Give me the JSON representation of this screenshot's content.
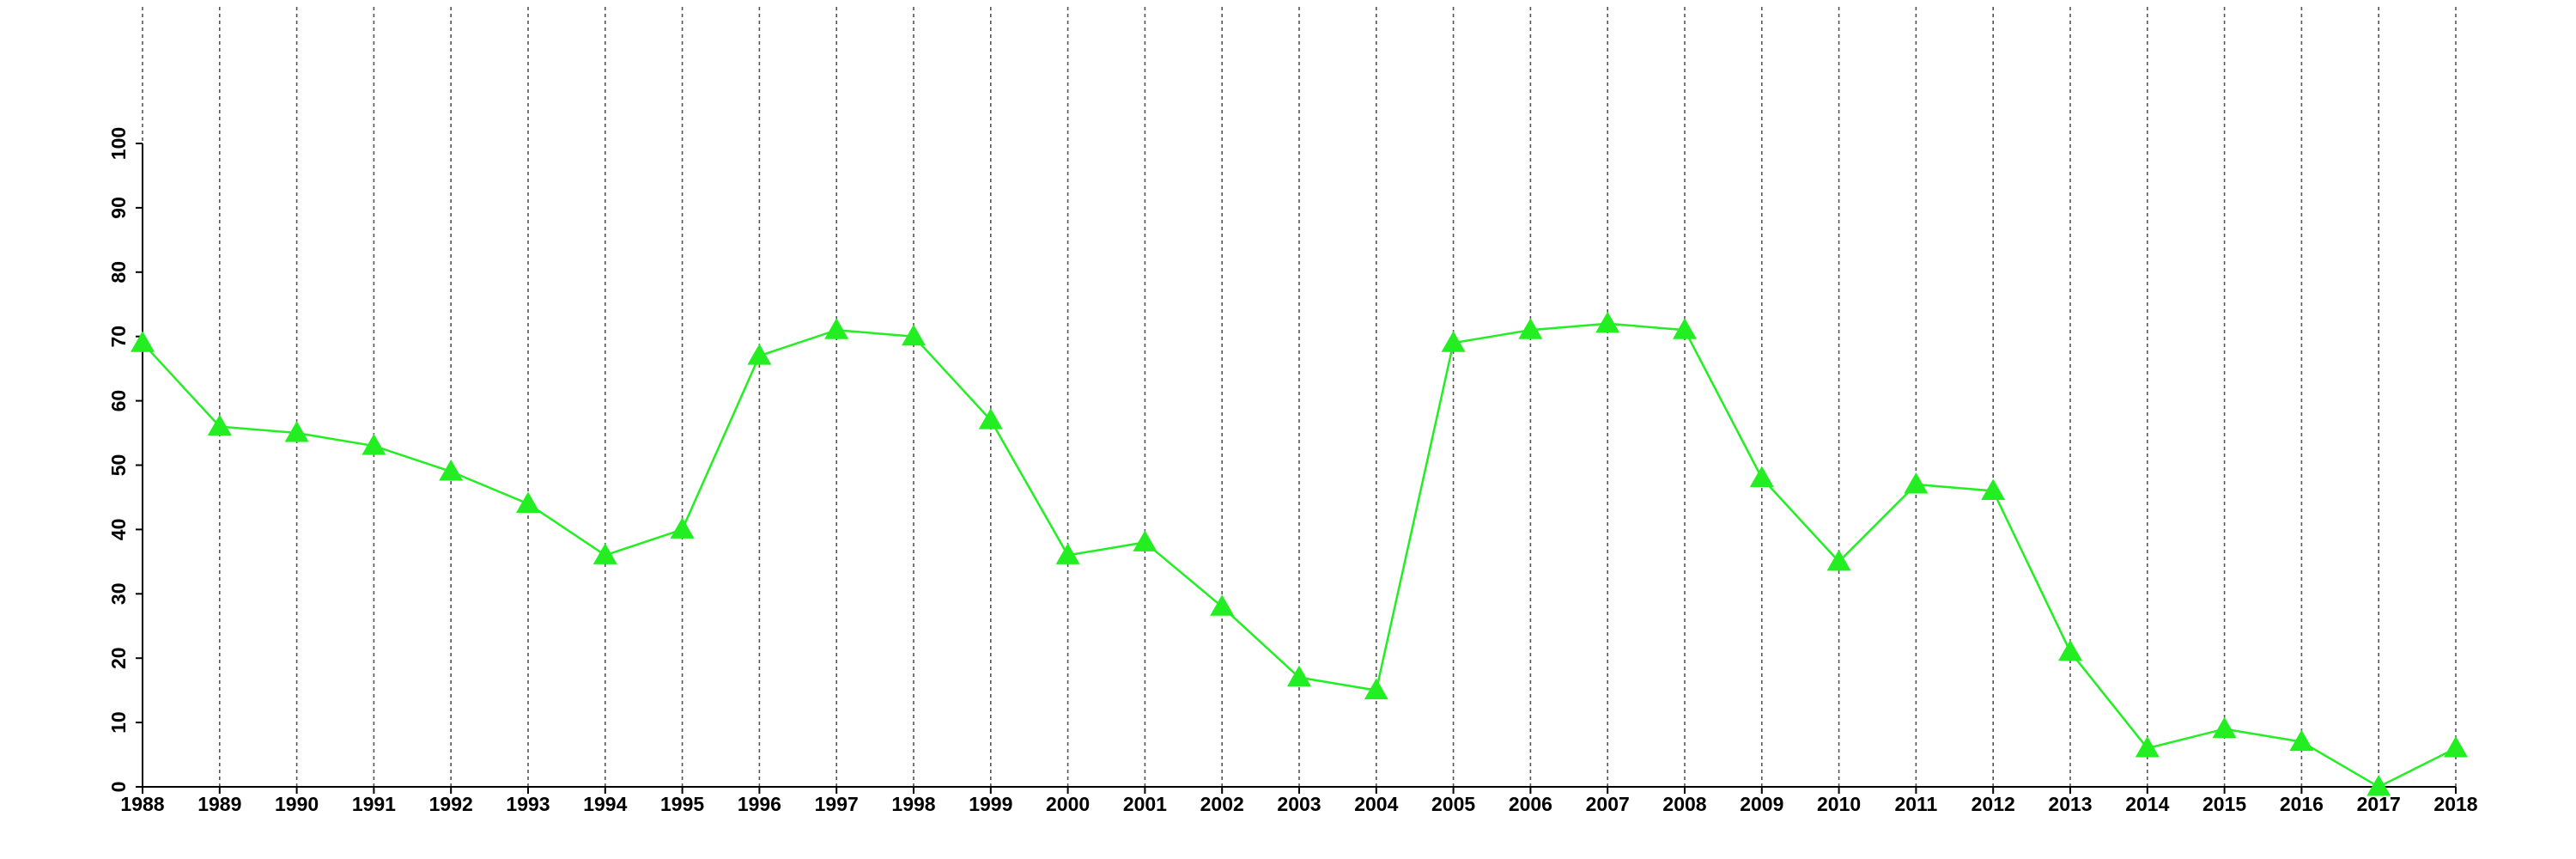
{
  "chart_data": {
    "type": "line",
    "x": [
      1988,
      1989,
      1990,
      1991,
      1992,
      1993,
      1994,
      1995,
      1996,
      1997,
      1998,
      1999,
      2000,
      2001,
      2002,
      2003,
      2004,
      2005,
      2006,
      2007,
      2008,
      2009,
      2010,
      2011,
      2012,
      2013,
      2014,
      2015,
      2016,
      2017,
      2018
    ],
    "values": [
      69,
      56,
      55,
      53,
      49,
      44,
      36,
      40,
      67,
      71,
      70,
      57,
      36,
      38,
      28,
      17,
      15,
      69,
      71,
      72,
      71,
      48,
      35,
      47,
      46,
      21,
      6,
      9,
      7,
      0,
      6
    ],
    "color": "#22ee22",
    "marker": "triangle",
    "xlim": [
      1988,
      2018
    ],
    "xticks": [
      1988,
      1989,
      1990,
      1991,
      1992,
      1993,
      1994,
      1995,
      1996,
      1997,
      1998,
      1999,
      2000,
      2001,
      2002,
      2003,
      2004,
      2005,
      2006,
      2007,
      2008,
      2009,
      2010,
      2011,
      2012,
      2013,
      2014,
      2015,
      2016,
      2017,
      2018
    ],
    "ylim": [
      0,
      100
    ],
    "yticks": [
      0,
      10,
      20,
      30,
      40,
      50,
      60,
      70,
      80,
      90,
      100
    ],
    "grid": true
  }
}
